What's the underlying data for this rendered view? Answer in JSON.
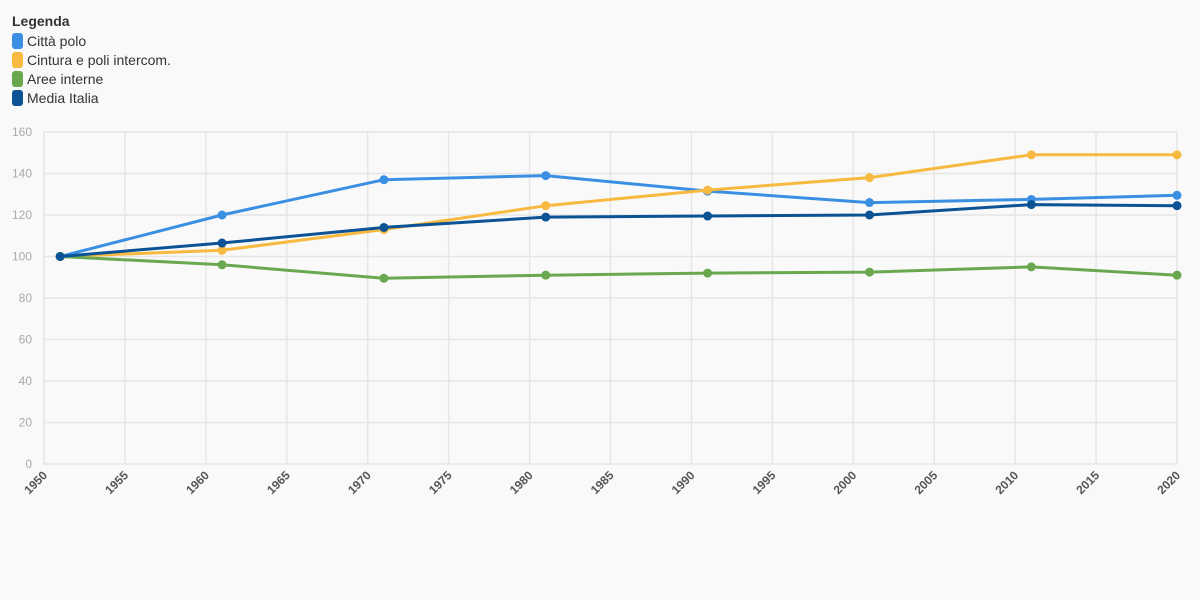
{
  "legend": {
    "title": "Legenda"
  },
  "chart_data": {
    "type": "line",
    "xlim": [
      1950,
      2020
    ],
    "ylim": [
      0,
      160
    ],
    "x_ticks": [
      1950,
      1955,
      1960,
      1965,
      1970,
      1975,
      1980,
      1985,
      1990,
      1995,
      2000,
      2005,
      2010,
      2015,
      2020
    ],
    "y_ticks": [
      0,
      20,
      40,
      60,
      80,
      100,
      120,
      140,
      160
    ],
    "grid": true,
    "legend_position": "top-left",
    "x": [
      1951,
      1961,
      1971,
      1981,
      1991,
      2001,
      2011,
      2020
    ],
    "series": [
      {
        "name": "Città polo",
        "color": "#3a8fe3",
        "values": [
          100,
          120,
          137,
          139,
          131.5,
          126,
          127.5,
          129.5
        ]
      },
      {
        "name": "Cintura e poli intercom.",
        "color": "#f7b940",
        "values": [
          100,
          103,
          113,
          124.5,
          132,
          138,
          149,
          149
        ]
      },
      {
        "name": "Aree interne",
        "color": "#6aa84f",
        "values": [
          100,
          96,
          89.5,
          91,
          92,
          92.5,
          95,
          91
        ]
      },
      {
        "name": "Media Italia",
        "color": "#0b5394",
        "values": [
          100,
          106.5,
          114,
          119,
          119.5,
          120,
          125,
          124.5
        ]
      }
    ]
  }
}
